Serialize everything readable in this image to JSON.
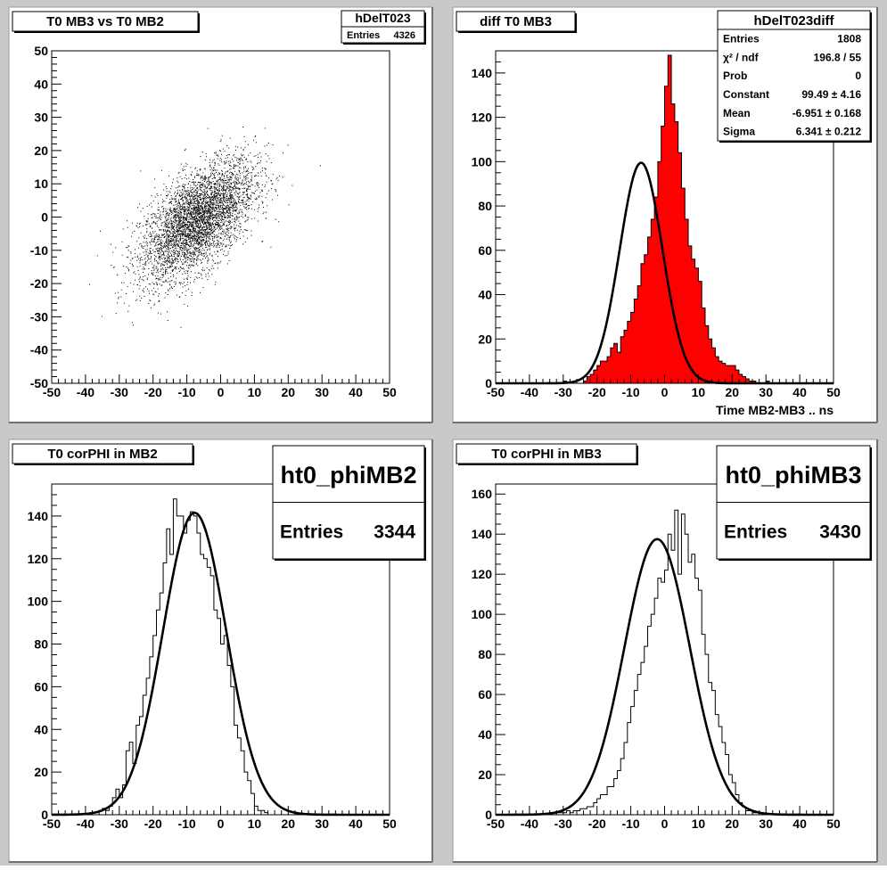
{
  "canvas": {
    "background": "#c9c9c9",
    "pad_fill": "#ffffff",
    "frame_fill": "#ffffff"
  },
  "chart_data": [
    {
      "type": "scatter",
      "title": "T0 MB3 vs T0 MB2",
      "xlabel": "",
      "ylabel": "",
      "xlim": [
        -50,
        50
      ],
      "ylim": [
        -50,
        50
      ],
      "xticks": [
        -50,
        -40,
        -30,
        -20,
        -10,
        0,
        10,
        20,
        30,
        40,
        50
      ],
      "yticks": [
        -50,
        -40,
        -30,
        -20,
        -10,
        0,
        10,
        20,
        30,
        40,
        50
      ],
      "stats": {
        "name": "hDelT023",
        "rows": [
          [
            "Entries",
            "4326"
          ]
        ]
      },
      "scatter": {
        "entries": 4326,
        "mean": [
          -7,
          -1
        ],
        "sigma": [
          8.5,
          9
        ],
        "correlation": 0.6,
        "color": "#000000"
      }
    },
    {
      "type": "bar",
      "title": "diff T0 MB3",
      "xlabel": "Time MB2-MB3  ..  ns",
      "ylabel": "",
      "xlim": [
        -50,
        50
      ],
      "ylim": [
        0,
        150
      ],
      "xticks": [
        -50,
        -40,
        -30,
        -20,
        -10,
        0,
        10,
        20,
        30,
        40,
        50
      ],
      "yticks": [
        0,
        20,
        40,
        60,
        80,
        100,
        120,
        140
      ],
      "fill": "#ff0000",
      "bin_low": -50,
      "bin_width": 1,
      "values": [
        0,
        0,
        0,
        0,
        0,
        0,
        0,
        0,
        0,
        0,
        0,
        0,
        0,
        0,
        0,
        0,
        0,
        0,
        0,
        0,
        1,
        0,
        0,
        0,
        0,
        0,
        1,
        3,
        4,
        6,
        8,
        10,
        10,
        12,
        16,
        18,
        14,
        21,
        24,
        28,
        32,
        38,
        44,
        54,
        58,
        66,
        74,
        84,
        100,
        116,
        134,
        148,
        126,
        118,
        104,
        88,
        74,
        62,
        56,
        52,
        46,
        34,
        26,
        20,
        16,
        12,
        10,
        9,
        8,
        8,
        8,
        6,
        4,
        3,
        2,
        1,
        1,
        0,
        0,
        0,
        1,
        0,
        0,
        0,
        0,
        0,
        0,
        0,
        0,
        0,
        0,
        0,
        0,
        0,
        0,
        0,
        0,
        0,
        0,
        0
      ],
      "fit": {
        "type": "gaussian",
        "constant": 99.49,
        "mean": -6.951,
        "sigma": 6.341,
        "color": "#000000"
      },
      "stats": {
        "name": "hDelT023diff",
        "rows": [
          [
            "Entries",
            "1808"
          ],
          [
            "χ² / ndf",
            "196.8 / 55"
          ],
          [
            "Prob",
            "0"
          ],
          [
            "Constant",
            "99.49 ± 4.16"
          ],
          [
            "Mean",
            "-6.951 ± 0.168"
          ],
          [
            "Sigma",
            "6.341 ± 0.212"
          ]
        ]
      }
    },
    {
      "type": "line",
      "title": "T0 corPHI in MB2",
      "xlabel": "",
      "ylabel": "",
      "xlim": [
        -50,
        50
      ],
      "ylim": [
        0,
        155
      ],
      "xticks": [
        -50,
        -40,
        -30,
        -20,
        -10,
        0,
        10,
        20,
        30,
        40,
        50
      ],
      "yticks": [
        0,
        20,
        40,
        60,
        80,
        100,
        120,
        140
      ],
      "bin_low": -50,
      "bin_width": 1,
      "values": [
        0,
        0,
        0,
        0,
        0,
        0,
        0,
        0,
        0,
        0,
        0,
        0,
        0,
        0,
        2,
        3,
        2,
        4,
        8,
        12,
        8,
        14,
        30,
        34,
        24,
        42,
        46,
        56,
        64,
        74,
        84,
        96,
        104,
        118,
        134,
        122,
        148,
        140,
        140,
        132,
        138,
        142,
        140,
        132,
        122,
        120,
        116,
        112,
        96,
        92,
        80,
        84,
        70,
        60,
        42,
        36,
        30,
        20,
        16,
        10,
        4,
        2,
        2,
        1,
        0,
        0,
        0,
        0,
        0,
        0,
        0,
        0,
        0,
        0,
        0,
        0,
        0,
        0,
        0,
        0,
        0,
        0,
        0,
        0,
        0,
        0,
        0,
        0,
        0,
        0,
        0,
        0,
        0,
        0,
        0,
        0,
        0,
        0,
        0,
        0
      ],
      "fit": {
        "type": "gaussian",
        "constant": 141.5,
        "mean": -7.7,
        "sigma": 9.4,
        "color": "#000000"
      },
      "stats": {
        "name": "ht0_phiMB2",
        "rows": [
          [
            "Entries",
            "3344"
          ]
        ]
      }
    },
    {
      "type": "line",
      "title": "T0 corPHI in MB3",
      "xlabel": "",
      "ylabel": "",
      "xlim": [
        -50,
        50
      ],
      "ylim": [
        0,
        165
      ],
      "xticks": [
        -50,
        -40,
        -30,
        -20,
        -10,
        0,
        10,
        20,
        30,
        40,
        50
      ],
      "yticks": [
        0,
        20,
        40,
        60,
        80,
        100,
        120,
        140,
        160
      ],
      "bin_low": -50,
      "bin_width": 1,
      "values": [
        0,
        0,
        0,
        0,
        0,
        0,
        0,
        0,
        0,
        0,
        0,
        0,
        0,
        0,
        0,
        0,
        0,
        0,
        1,
        1,
        1,
        2,
        1,
        2,
        2,
        3,
        3,
        4,
        4,
        6,
        8,
        10,
        10,
        14,
        14,
        18,
        22,
        28,
        36,
        46,
        54,
        62,
        70,
        76,
        84,
        94,
        100,
        108,
        118,
        116,
        122,
        140,
        132,
        152,
        120,
        150,
        140,
        126,
        130,
        118,
        112,
        90,
        80,
        66,
        62,
        50,
        44,
        36,
        30,
        20,
        16,
        10,
        6,
        4,
        2,
        2,
        1,
        1,
        0,
        0,
        0,
        0,
        0,
        0,
        0,
        0,
        0,
        0,
        0,
        0,
        0,
        0,
        0,
        0,
        0,
        0,
        0,
        0,
        0,
        0
      ],
      "fit": {
        "type": "gaussian",
        "constant": 137.5,
        "mean": -2.2,
        "sigma": 9.7,
        "color": "#000000"
      },
      "stats": {
        "name": "ht0_phiMB3",
        "rows": [
          [
            "Entries",
            "3430"
          ]
        ]
      }
    }
  ]
}
